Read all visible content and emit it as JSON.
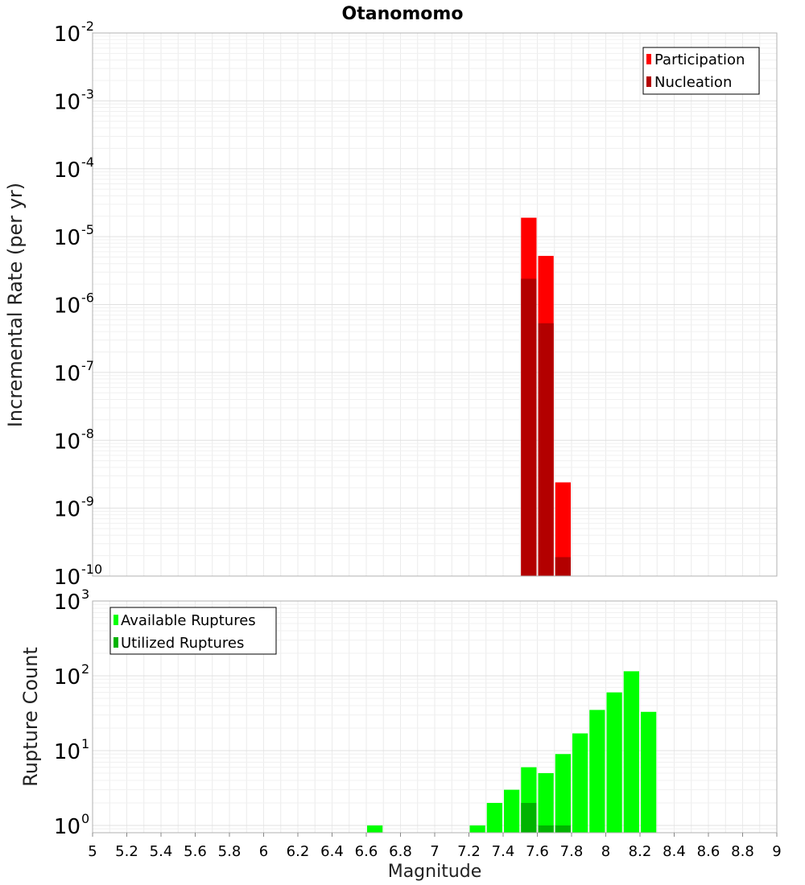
{
  "chart_data": [
    {
      "type": "bar",
      "title": "Otanomomo",
      "ylabel": "Incremental Rate (per yr)",
      "xlabel": "",
      "x_range": [
        5,
        9
      ],
      "y_scale": "log",
      "y_range": [
        1e-10,
        0.01
      ],
      "y_ticks": [
        {
          "base": "10",
          "exp": "-2",
          "value": 0.01
        },
        {
          "base": "10",
          "exp": "-3",
          "value": 0.001
        },
        {
          "base": "10",
          "exp": "-4",
          "value": 0.0001
        },
        {
          "base": "10",
          "exp": "-5",
          "value": 1e-05
        },
        {
          "base": "10",
          "exp": "-6",
          "value": 1e-06
        },
        {
          "base": "10",
          "exp": "-7",
          "value": 1e-07
        },
        {
          "base": "10",
          "exp": "-8",
          "value": 1e-08
        },
        {
          "base": "10",
          "exp": "-9",
          "value": 1e-09
        },
        {
          "base": "10",
          "exp": "-10",
          "value": 1e-10
        }
      ],
      "legend": {
        "position": "top-right",
        "entries": [
          {
            "label": "Participation",
            "color": "#ff0000"
          },
          {
            "label": "Nucleation",
            "color": "#b30000"
          }
        ]
      },
      "grid": true,
      "bin_width": 0.1,
      "series": [
        {
          "name": "Participation",
          "color": "#ff0000",
          "points": [
            {
              "x": 7.55,
              "y": 1.9e-05
            },
            {
              "x": 7.65,
              "y": 5.2e-06
            },
            {
              "x": 7.75,
              "y": 2.4e-09
            }
          ]
        },
        {
          "name": "Nucleation",
          "color": "#b30000",
          "points": [
            {
              "x": 7.55,
              "y": 2.4e-06
            },
            {
              "x": 7.65,
              "y": 5.3e-07
            },
            {
              "x": 7.75,
              "y": 1.9e-10
            }
          ]
        }
      ]
    },
    {
      "type": "bar",
      "ylabel": "Rupture Count",
      "xlabel": "Magnitude",
      "x_range": [
        5,
        9
      ],
      "x_ticks": [
        "5",
        "5.2",
        "5.4",
        "5.6",
        "5.8",
        "6",
        "6.2",
        "6.4",
        "6.6",
        "6.8",
        "7",
        "7.2",
        "7.4",
        "7.6",
        "7.8",
        "8",
        "8.2",
        "8.4",
        "8.6",
        "8.8",
        "9"
      ],
      "y_scale": "log",
      "y_range": [
        0.8,
        1000
      ],
      "y_ticks": [
        {
          "base": "10",
          "exp": "3",
          "value": 1000
        },
        {
          "base": "10",
          "exp": "2",
          "value": 100
        },
        {
          "base": "10",
          "exp": "1",
          "value": 10
        },
        {
          "base": "10",
          "exp": "0",
          "value": 1
        }
      ],
      "legend": {
        "position": "top-left",
        "entries": [
          {
            "label": "Available Ruptures",
            "color": "#00ff00"
          },
          {
            "label": "Utilized Ruptures",
            "color": "#00b300"
          }
        ]
      },
      "grid": true,
      "bin_width": 0.1,
      "series": [
        {
          "name": "Available Ruptures",
          "color": "#00ff00",
          "points": [
            {
              "x": 6.65,
              "y": 1
            },
            {
              "x": 7.25,
              "y": 1
            },
            {
              "x": 7.35,
              "y": 2
            },
            {
              "x": 7.45,
              "y": 3
            },
            {
              "x": 7.55,
              "y": 6
            },
            {
              "x": 7.65,
              "y": 5
            },
            {
              "x": 7.75,
              "y": 9
            },
            {
              "x": 7.85,
              "y": 17
            },
            {
              "x": 7.95,
              "y": 35
            },
            {
              "x": 8.05,
              "y": 60
            },
            {
              "x": 8.15,
              "y": 115
            },
            {
              "x": 8.25,
              "y": 33
            }
          ]
        },
        {
          "name": "Utilized Ruptures",
          "color": "#00b300",
          "points": [
            {
              "x": 7.55,
              "y": 2
            },
            {
              "x": 7.65,
              "y": 1
            },
            {
              "x": 7.75,
              "y": 1
            }
          ]
        }
      ]
    }
  ]
}
